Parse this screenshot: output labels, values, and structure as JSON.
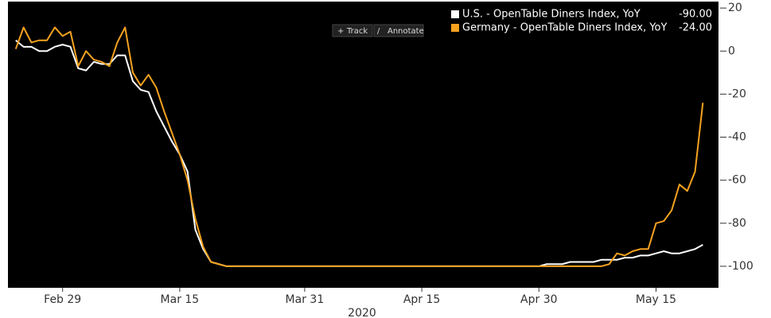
{
  "toolbar": [
    "Track",
    "Annotate"
  ],
  "chart_data": {
    "type": "line",
    "x": [
      "2020-02-23",
      "2020-02-24",
      "2020-02-25",
      "2020-02-26",
      "2020-02-27",
      "2020-02-28",
      "2020-02-29",
      "2020-03-01",
      "2020-03-02",
      "2020-03-03",
      "2020-03-04",
      "2020-03-05",
      "2020-03-06",
      "2020-03-07",
      "2020-03-08",
      "2020-03-09",
      "2020-03-10",
      "2020-03-11",
      "2020-03-12",
      "2020-03-13",
      "2020-03-14",
      "2020-03-15",
      "2020-03-16",
      "2020-03-17",
      "2020-03-18",
      "2020-03-19",
      "2020-03-20",
      "2020-03-21",
      "2020-03-22",
      "2020-03-23",
      "2020-03-24",
      "2020-03-25",
      "2020-03-26",
      "2020-03-27",
      "2020-03-28",
      "2020-03-29",
      "2020-03-30",
      "2020-03-31",
      "2020-04-01",
      "2020-04-02",
      "2020-04-03",
      "2020-04-04",
      "2020-04-05",
      "2020-04-06",
      "2020-04-07",
      "2020-04-08",
      "2020-04-09",
      "2020-04-10",
      "2020-04-11",
      "2020-04-12",
      "2020-04-13",
      "2020-04-14",
      "2020-04-15",
      "2020-04-16",
      "2020-04-17",
      "2020-04-18",
      "2020-04-19",
      "2020-04-20",
      "2020-04-21",
      "2020-04-22",
      "2020-04-23",
      "2020-04-24",
      "2020-04-25",
      "2020-04-26",
      "2020-04-27",
      "2020-04-28",
      "2020-04-29",
      "2020-04-30",
      "2020-05-01",
      "2020-05-02",
      "2020-05-03",
      "2020-05-04",
      "2020-05-05",
      "2020-05-06",
      "2020-05-07",
      "2020-05-08",
      "2020-05-09",
      "2020-05-10",
      "2020-05-11",
      "2020-05-12",
      "2020-05-13",
      "2020-05-14",
      "2020-05-15",
      "2020-05-16",
      "2020-05-17",
      "2020-05-18",
      "2020-05-19",
      "2020-05-20",
      "2020-05-21"
    ],
    "series": [
      {
        "name": "U.S. - OpenTable Diners Index, YoY",
        "color": "#ffffff",
        "last_label": "-90.00",
        "values": [
          5,
          2,
          2,
          0,
          0,
          2,
          3,
          2,
          -8,
          -9,
          -5,
          -6,
          -6,
          -2,
          -2,
          -14,
          -18,
          -19,
          -28,
          -35,
          -42,
          -48,
          -56,
          -83,
          -92,
          -98,
          -99,
          -100,
          -100,
          -100,
          -100,
          -100,
          -100,
          -100,
          -100,
          -100,
          -100,
          -100,
          -100,
          -100,
          -100,
          -100,
          -100,
          -100,
          -100,
          -100,
          -100,
          -100,
          -100,
          -100,
          -100,
          -100,
          -100,
          -100,
          -100,
          -100,
          -100,
          -100,
          -100,
          -100,
          -100,
          -100,
          -100,
          -100,
          -100,
          -100,
          -100,
          -100,
          -99,
          -99,
          -99,
          -98,
          -98,
          -98,
          -98,
          -97,
          -97,
          -97,
          -96,
          -96,
          -95,
          -95,
          -94,
          -93,
          -94,
          -94,
          -93,
          -92,
          -90
        ]
      },
      {
        "name": "Germany - OpenTable Diners Index, YoY",
        "color": "#f5a21f",
        "last_label": "-24.00",
        "values": [
          1,
          11,
          4,
          5,
          5,
          11,
          7,
          9,
          -7,
          0,
          -4,
          -5,
          -7,
          4,
          11,
          -10,
          -16,
          -11,
          -17,
          -28,
          -38,
          -48,
          -60,
          -78,
          -91,
          -98,
          -99,
          -100,
          -100,
          -100,
          -100,
          -100,
          -100,
          -100,
          -100,
          -100,
          -100,
          -100,
          -100,
          -100,
          -100,
          -100,
          -100,
          -100,
          -100,
          -100,
          -100,
          -100,
          -100,
          -100,
          -100,
          -100,
          -100,
          -100,
          -100,
          -100,
          -100,
          -100,
          -100,
          -100,
          -100,
          -100,
          -100,
          -100,
          -100,
          -100,
          -100,
          -100,
          -100,
          -100,
          -100,
          -100,
          -100,
          -100,
          -100,
          -100,
          -99,
          -94,
          -95,
          -93,
          -92,
          -92,
          -80,
          -79,
          -74,
          -62,
          -65,
          -56,
          -24
        ]
      }
    ],
    "xlim": [
      "2020-02-22",
      "2020-05-23"
    ],
    "xticks": [
      {
        "value": "2020-02-29",
        "label": "Feb 29"
      },
      {
        "value": "2020-03-15",
        "label": "Mar 15"
      },
      {
        "value": "2020-03-31",
        "label": "Mar 31"
      },
      {
        "value": "2020-04-15",
        "label": "Apr 15"
      },
      {
        "value": "2020-04-30",
        "label": "Apr 30"
      },
      {
        "value": "2020-05-15",
        "label": "May 15"
      }
    ],
    "xlabel": "2020",
    "ylim": [
      -110,
      23
    ],
    "yticks": [
      20,
      0,
      -20,
      -40,
      -60,
      -80,
      -100
    ],
    "y_axis_side": "right",
    "background": "#000000"
  }
}
